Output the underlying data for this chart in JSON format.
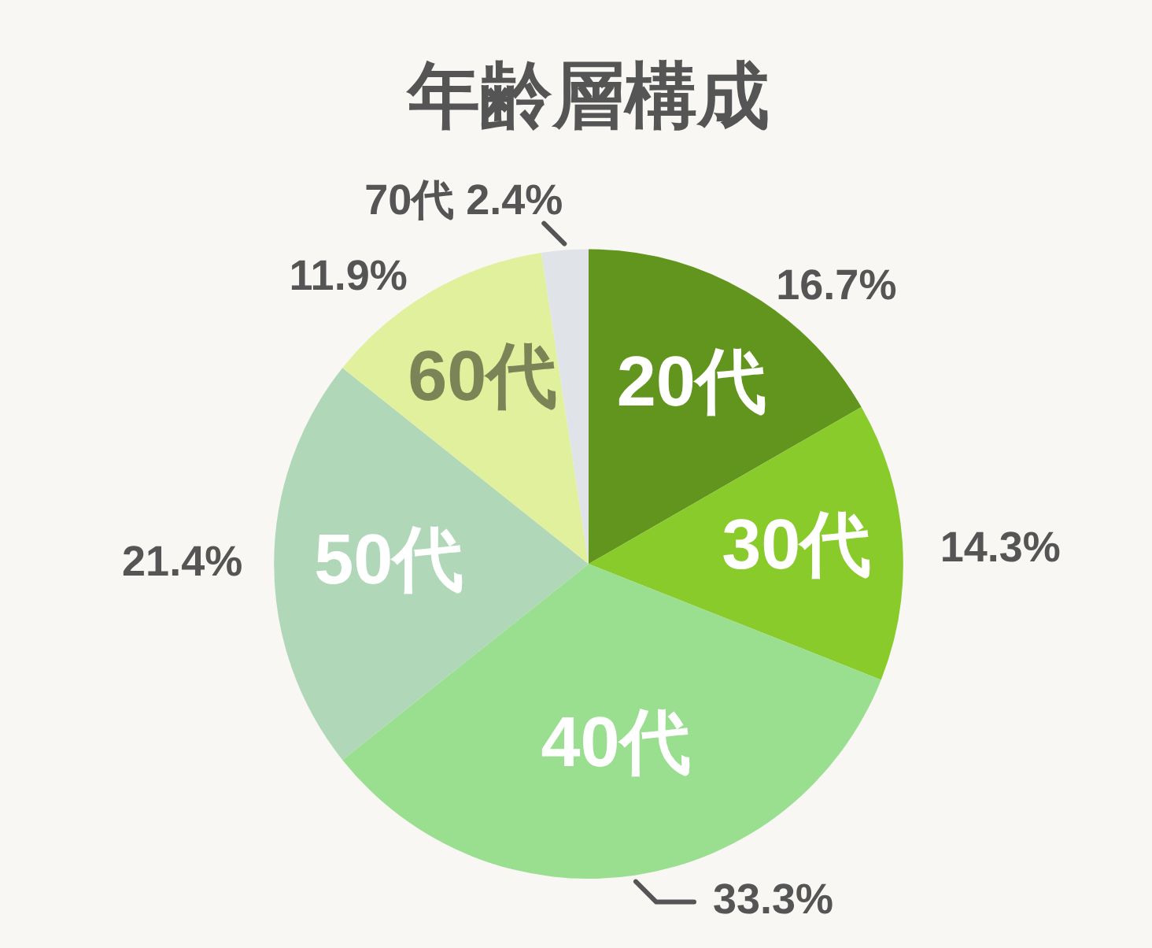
{
  "chart_data": {
    "type": "pie",
    "title": "年齢層構成",
    "categories": [
      "20代",
      "30代",
      "40代",
      "50代",
      "60代",
      "70代"
    ],
    "values": [
      16.7,
      14.3,
      33.3,
      21.4,
      11.9,
      2.4
    ],
    "colors": [
      "#62951e",
      "#88cb2a",
      "#9ade90",
      "#b0d8b8",
      "#e0f09c",
      "#e0e4e8"
    ],
    "value_labels": [
      "16.7%",
      "14.3%",
      "33.3%",
      "21.4%",
      "11.9%",
      "2.4%"
    ]
  }
}
